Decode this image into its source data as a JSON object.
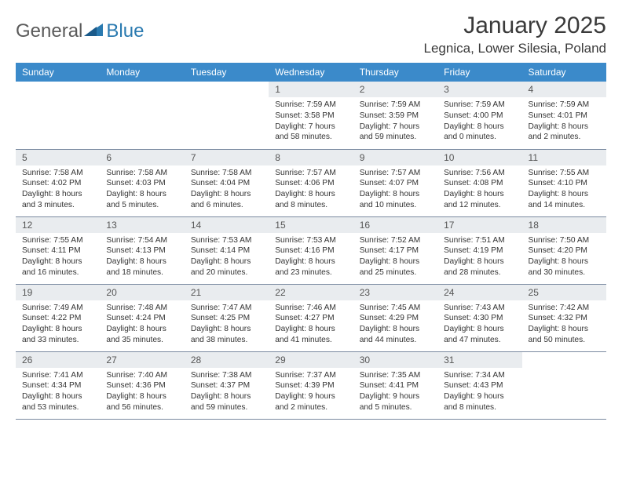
{
  "logo": {
    "word1": "General",
    "word2": "Blue",
    "word1_color": "#5a5a5a",
    "word2_color": "#2a7ab0"
  },
  "title": "January 2025",
  "location": "Legnica, Lower Silesia, Poland",
  "colors": {
    "header_bg": "#3b8aca",
    "header_text": "#ffffff",
    "daynum_bg": "#e9ecef",
    "cell_border": "#7a8aa0",
    "body_text": "#333333",
    "title_text": "#3a3a3a"
  },
  "day_headers": [
    "Sunday",
    "Monday",
    "Tuesday",
    "Wednesday",
    "Thursday",
    "Friday",
    "Saturday"
  ],
  "weeks": [
    [
      null,
      null,
      null,
      {
        "n": "1",
        "sr": "7:59 AM",
        "ss": "3:58 PM",
        "dh": "7",
        "dm": "58"
      },
      {
        "n": "2",
        "sr": "7:59 AM",
        "ss": "3:59 PM",
        "dh": "7",
        "dm": "59"
      },
      {
        "n": "3",
        "sr": "7:59 AM",
        "ss": "4:00 PM",
        "dh": "8",
        "dm": "0"
      },
      {
        "n": "4",
        "sr": "7:59 AM",
        "ss": "4:01 PM",
        "dh": "8",
        "dm": "2"
      }
    ],
    [
      {
        "n": "5",
        "sr": "7:58 AM",
        "ss": "4:02 PM",
        "dh": "8",
        "dm": "3"
      },
      {
        "n": "6",
        "sr": "7:58 AM",
        "ss": "4:03 PM",
        "dh": "8",
        "dm": "5"
      },
      {
        "n": "7",
        "sr": "7:58 AM",
        "ss": "4:04 PM",
        "dh": "8",
        "dm": "6"
      },
      {
        "n": "8",
        "sr": "7:57 AM",
        "ss": "4:06 PM",
        "dh": "8",
        "dm": "8"
      },
      {
        "n": "9",
        "sr": "7:57 AM",
        "ss": "4:07 PM",
        "dh": "8",
        "dm": "10"
      },
      {
        "n": "10",
        "sr": "7:56 AM",
        "ss": "4:08 PM",
        "dh": "8",
        "dm": "12"
      },
      {
        "n": "11",
        "sr": "7:55 AM",
        "ss": "4:10 PM",
        "dh": "8",
        "dm": "14"
      }
    ],
    [
      {
        "n": "12",
        "sr": "7:55 AM",
        "ss": "4:11 PM",
        "dh": "8",
        "dm": "16"
      },
      {
        "n": "13",
        "sr": "7:54 AM",
        "ss": "4:13 PM",
        "dh": "8",
        "dm": "18"
      },
      {
        "n": "14",
        "sr": "7:53 AM",
        "ss": "4:14 PM",
        "dh": "8",
        "dm": "20"
      },
      {
        "n": "15",
        "sr": "7:53 AM",
        "ss": "4:16 PM",
        "dh": "8",
        "dm": "23"
      },
      {
        "n": "16",
        "sr": "7:52 AM",
        "ss": "4:17 PM",
        "dh": "8",
        "dm": "25"
      },
      {
        "n": "17",
        "sr": "7:51 AM",
        "ss": "4:19 PM",
        "dh": "8",
        "dm": "28"
      },
      {
        "n": "18",
        "sr": "7:50 AM",
        "ss": "4:20 PM",
        "dh": "8",
        "dm": "30"
      }
    ],
    [
      {
        "n": "19",
        "sr": "7:49 AM",
        "ss": "4:22 PM",
        "dh": "8",
        "dm": "33"
      },
      {
        "n": "20",
        "sr": "7:48 AM",
        "ss": "4:24 PM",
        "dh": "8",
        "dm": "35"
      },
      {
        "n": "21",
        "sr": "7:47 AM",
        "ss": "4:25 PM",
        "dh": "8",
        "dm": "38"
      },
      {
        "n": "22",
        "sr": "7:46 AM",
        "ss": "4:27 PM",
        "dh": "8",
        "dm": "41"
      },
      {
        "n": "23",
        "sr": "7:45 AM",
        "ss": "4:29 PM",
        "dh": "8",
        "dm": "44"
      },
      {
        "n": "24",
        "sr": "7:43 AM",
        "ss": "4:30 PM",
        "dh": "8",
        "dm": "47"
      },
      {
        "n": "25",
        "sr": "7:42 AM",
        "ss": "4:32 PM",
        "dh": "8",
        "dm": "50"
      }
    ],
    [
      {
        "n": "26",
        "sr": "7:41 AM",
        "ss": "4:34 PM",
        "dh": "8",
        "dm": "53"
      },
      {
        "n": "27",
        "sr": "7:40 AM",
        "ss": "4:36 PM",
        "dh": "8",
        "dm": "56"
      },
      {
        "n": "28",
        "sr": "7:38 AM",
        "ss": "4:37 PM",
        "dh": "8",
        "dm": "59"
      },
      {
        "n": "29",
        "sr": "7:37 AM",
        "ss": "4:39 PM",
        "dh": "9",
        "dm": "2"
      },
      {
        "n": "30",
        "sr": "7:35 AM",
        "ss": "4:41 PM",
        "dh": "9",
        "dm": "5"
      },
      {
        "n": "31",
        "sr": "7:34 AM",
        "ss": "4:43 PM",
        "dh": "9",
        "dm": "8"
      },
      null
    ]
  ],
  "labels": {
    "sunrise": "Sunrise:",
    "sunset": "Sunset:",
    "daylight_prefix": "Daylight:",
    "hours_word": "hours",
    "and_word": "and",
    "minutes_suffix": "minutes."
  }
}
